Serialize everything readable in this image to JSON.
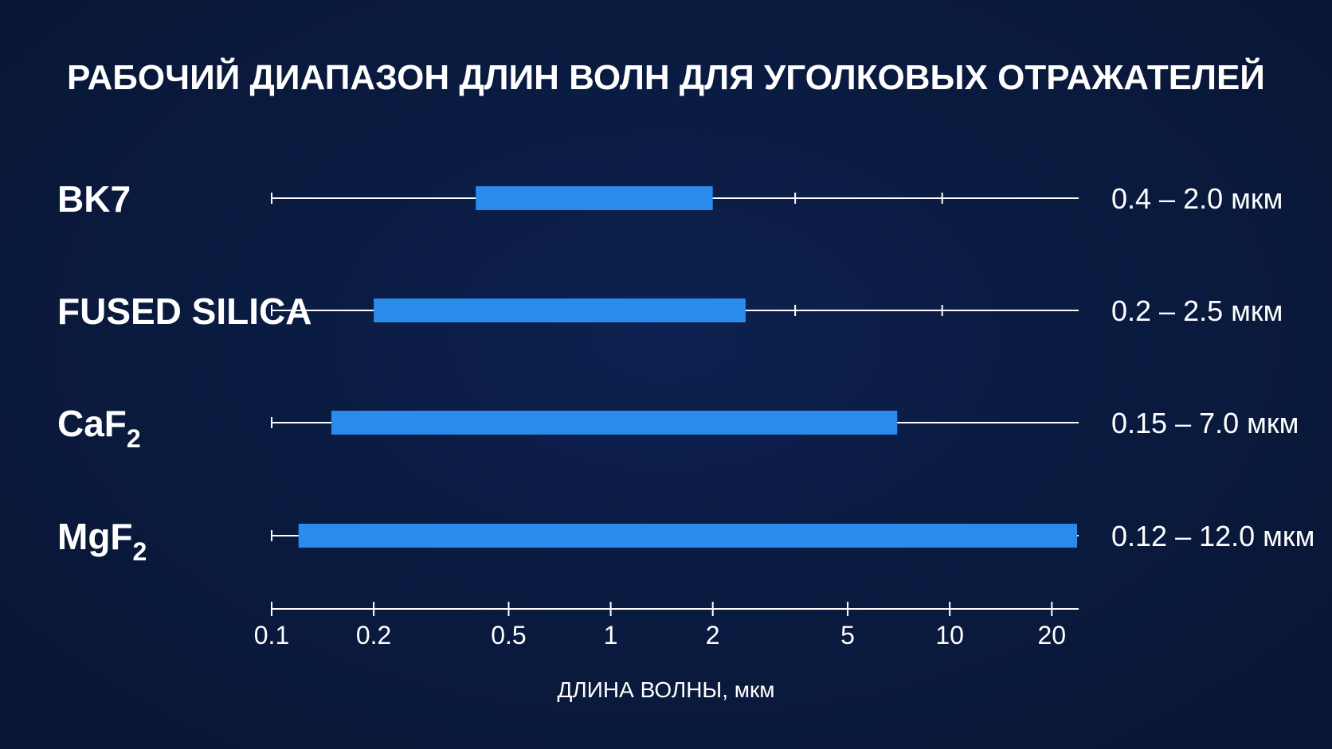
{
  "chart_data": {
    "type": "bar",
    "orientation": "horizontal-range",
    "title": "РАБОЧИЙ ДИАПАЗОН ДЛИН ВОЛН ДЛЯ УГОЛКОВЫХ ОТРАЖАТЕЛЕЙ",
    "xlabel": "ДЛИНА ВОЛНЫ, мкм",
    "x_scale": "log",
    "xlim": [
      0.1,
      24
    ],
    "x_ticks": [
      0.1,
      0.2,
      0.5,
      1,
      2,
      5,
      10,
      20
    ],
    "x_tick_labels": [
      "0.1",
      "0.2",
      "0.5",
      "1",
      "2",
      "5",
      "10",
      "20"
    ],
    "categories": [
      {
        "label": "BK7",
        "sub": ""
      },
      {
        "label": "FUSED SILICA",
        "sub": ""
      },
      {
        "label": "CaF",
        "sub": "2"
      },
      {
        "label": "MgF",
        "sub": "2"
      }
    ],
    "ranges": [
      {
        "start": 0.4,
        "end": 2.0,
        "label": "0.4 – 2.0 мкм"
      },
      {
        "start": 0.2,
        "end": 2.5,
        "label": "0.2 – 2.5 мкм"
      },
      {
        "start": 0.15,
        "end": 7.0,
        "label": "0.15 – 7.0 мкм"
      },
      {
        "start": 0.12,
        "end": 12.0,
        "label": "0.12 – 12.0 мкм"
      }
    ],
    "bar_color": "#2a8bea",
    "line_color": "#ffffff",
    "background_color": "#0b1b3f"
  }
}
